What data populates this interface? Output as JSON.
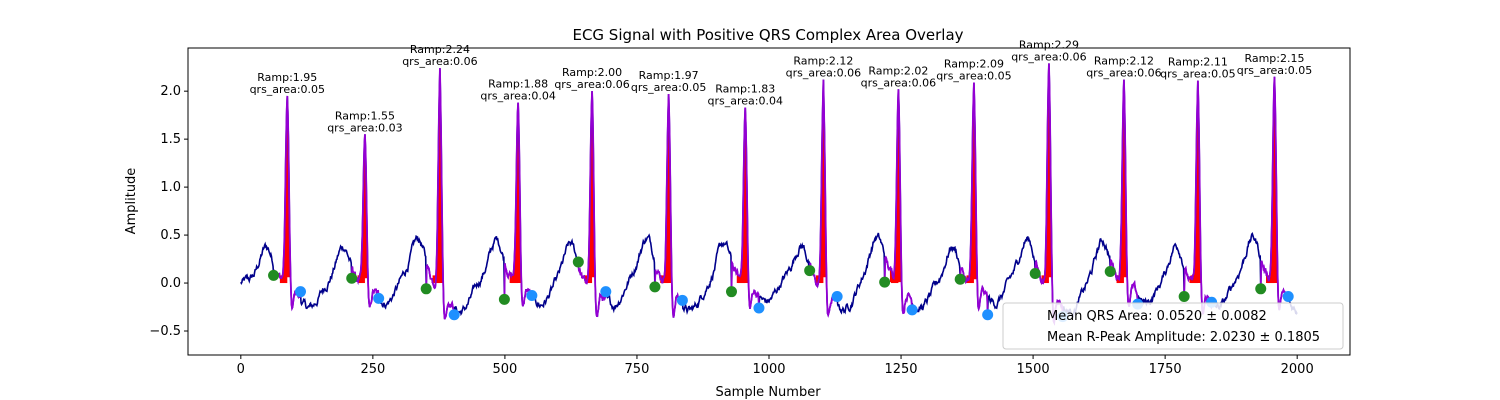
{
  "chart_data": {
    "type": "line",
    "title": "ECG Signal with Positive QRS Complex Area Overlay",
    "xlabel": "Sample Number",
    "ylabel": "Amplitude",
    "xlim": [
      -100,
      2100
    ],
    "ylim": [
      -0.75,
      2.45
    ],
    "x_ticks": [
      0,
      250,
      500,
      750,
      1000,
      1250,
      1500,
      1750,
      2000
    ],
    "y_ticks": [
      -0.5,
      0.0,
      0.5,
      1.0,
      1.5,
      2.0
    ],
    "grid": false,
    "legend_placement": "lower-right",
    "colors": {
      "signal": "#00008b",
      "qrs_segment": "#9400d3",
      "qrs_area_fill": "#ff0000",
      "q_onset_marker": "#228b22",
      "s_offset_marker": "#1e90ff"
    },
    "beats": [
      {
        "r_sample": 88,
        "r_amp": 1.95,
        "qrs_area": 0.05,
        "q_sample": 62,
        "q_amp": 0.08,
        "s_sample": 113,
        "s_amp": -0.09
      },
      {
        "r_sample": 235,
        "r_amp": 1.55,
        "qrs_area": 0.03,
        "q_sample": 210,
        "q_amp": 0.05,
        "s_sample": 261,
        "s_amp": -0.16
      },
      {
        "r_sample": 377,
        "r_amp": 2.24,
        "qrs_area": 0.06,
        "q_sample": 351,
        "q_amp": -0.06,
        "s_sample": 404,
        "s_amp": -0.33
      },
      {
        "r_sample": 525,
        "r_amp": 1.88,
        "qrs_area": 0.04,
        "q_sample": 499,
        "q_amp": -0.17,
        "s_sample": 551,
        "s_amp": -0.13
      },
      {
        "r_sample": 665,
        "r_amp": 2.0,
        "qrs_area": 0.06,
        "q_sample": 639,
        "q_amp": 0.22,
        "s_sample": 691,
        "s_amp": -0.09
      },
      {
        "r_sample": 810,
        "r_amp": 1.97,
        "qrs_area": 0.05,
        "q_sample": 784,
        "q_amp": -0.04,
        "s_sample": 836,
        "s_amp": -0.18
      },
      {
        "r_sample": 955,
        "r_amp": 1.83,
        "qrs_area": 0.04,
        "q_sample": 929,
        "q_amp": -0.09,
        "s_sample": 981,
        "s_amp": -0.26
      },
      {
        "r_sample": 1103,
        "r_amp": 2.12,
        "qrs_area": 0.06,
        "q_sample": 1077,
        "q_amp": 0.13,
        "s_sample": 1129,
        "s_amp": -0.14
      },
      {
        "r_sample": 1245,
        "r_amp": 2.02,
        "qrs_area": 0.06,
        "q_sample": 1219,
        "q_amp": 0.01,
        "s_sample": 1271,
        "s_amp": -0.28
      },
      {
        "r_sample": 1388,
        "r_amp": 2.09,
        "qrs_area": 0.05,
        "q_sample": 1362,
        "q_amp": 0.04,
        "s_sample": 1414,
        "s_amp": -0.33
      },
      {
        "r_sample": 1530,
        "r_amp": 2.29,
        "qrs_area": 0.06,
        "q_sample": 1504,
        "q_amp": 0.1,
        "s_sample": 1556,
        "s_amp": -0.35
      },
      {
        "r_sample": 1672,
        "r_amp": 2.12,
        "qrs_area": 0.06,
        "q_sample": 1646,
        "q_amp": 0.12,
        "s_sample": 1698,
        "s_amp": -0.22
      },
      {
        "r_sample": 1812,
        "r_amp": 2.11,
        "qrs_area": 0.05,
        "q_sample": 1786,
        "q_amp": -0.14,
        "s_sample": 1838,
        "s_amp": -0.2
      },
      {
        "r_sample": 1957,
        "r_amp": 2.15,
        "qrs_area": 0.05,
        "q_sample": 1931,
        "q_amp": -0.06,
        "s_sample": 1983,
        "s_amp": -0.14
      }
    ],
    "annotation_format": {
      "ramp_prefix": "Ramp:",
      "area_prefix": "qrs_area:"
    },
    "legend": {
      "mean_qrs_area": "Mean QRS Area: 0.0520 ± 0.0082",
      "mean_r_peak": "Mean R-Peak Amplitude: 2.0230 ± 0.1805"
    }
  }
}
